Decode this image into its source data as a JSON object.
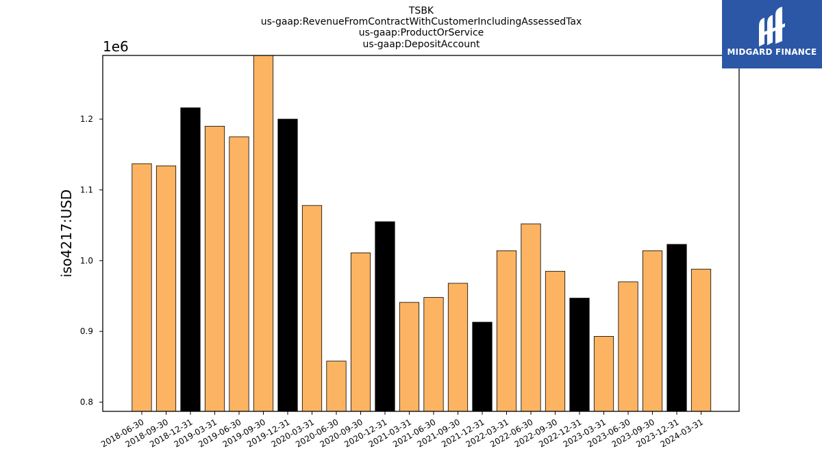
{
  "chart_data": {
    "type": "bar",
    "title_lines": [
      "TSBK",
      "us-gaap:RevenueFromContractWithCustomerIncludingAssessedTax",
      "us-gaap:ProductOrService",
      "us-gaap:DepositAccount"
    ],
    "ylabel": "iso4217:USD",
    "y_offset_label": "1e6",
    "ylim": [
      0.787,
      1.29
    ],
    "yticks": [
      0.8,
      0.9,
      1.0,
      1.1,
      1.2
    ],
    "ytick_labels": [
      "0.8",
      "0.9",
      "1.0",
      "1.1",
      "1.2"
    ],
    "categories": [
      "2018-06-30",
      "2018-09-30",
      "2018-12-31",
      "2019-03-31",
      "2019-06-30",
      "2019-09-30",
      "2019-12-31",
      "2020-03-31",
      "2020-06-30",
      "2020-09-30",
      "2020-12-31",
      "2021-03-31",
      "2021-06-30",
      "2021-09-30",
      "2021-12-31",
      "2022-03-31",
      "2022-06-30",
      "2022-09-30",
      "2022-12-31",
      "2023-03-31",
      "2023-06-30",
      "2023-09-30",
      "2023-12-31",
      "2024-03-31"
    ],
    "values": [
      1.137,
      1.134,
      1.216,
      1.19,
      1.175,
      1.29,
      1.2,
      1.078,
      0.858,
      1.011,
      1.055,
      0.941,
      0.948,
      0.968,
      0.913,
      1.014,
      1.052,
      0.985,
      0.947,
      0.893,
      0.97,
      1.014,
      1.023,
      0.988
    ],
    "bar_colors": [
      "#fdb462",
      "#fdb462",
      "#000000",
      "#fdb462",
      "#fdb462",
      "#fdb462",
      "#000000",
      "#fdb462",
      "#fdb462",
      "#fdb462",
      "#000000",
      "#fdb462",
      "#fdb462",
      "#fdb462",
      "#000000",
      "#fdb462",
      "#fdb462",
      "#fdb462",
      "#000000",
      "#fdb462",
      "#fdb462",
      "#fdb462",
      "#000000",
      "#fdb462"
    ],
    "grid": false,
    "legend": "none"
  },
  "logo": {
    "text": "MIDGARD FINANCE",
    "background": "#2b57a6",
    "icon": "midgard-logo-icon"
  }
}
